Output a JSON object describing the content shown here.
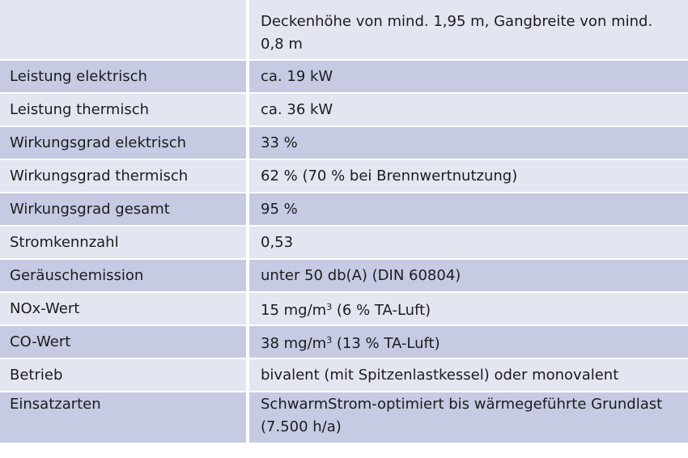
{
  "rows": [
    {
      "label": "",
      "value": "Deckenhöhe von mind. 1,95 m, Gangbreite von mind. 0,8 m"
    },
    {
      "label": "Leistung elektrisch",
      "value": "ca. 19 kW"
    },
    {
      "label": "Leistung thermisch",
      "value": "ca. 36 kW"
    },
    {
      "label": "Wirkungsgrad elektrisch",
      "value": "33 %"
    },
    {
      "label": "Wirkungsgrad thermisch",
      "value": "62 % (70 % bei Brennwertnutzung)"
    },
    {
      "label": "Wirkungsgrad gesamt",
      "value": "95 %"
    },
    {
      "label": "Stromkennzahl",
      "value": "0,53"
    },
    {
      "label": "Geräuschemission",
      "value": "unter 50 db(A) (DIN 60804)"
    },
    {
      "label": "NOx-Wert",
      "value_pre": "15 mg/m",
      "value_sup": "3",
      "value_post": " (6 % TA-Luft)"
    },
    {
      "label": "CO-Wert",
      "value_pre": "38 mg/m",
      "value_sup": "3",
      "value_post": " (13 % TA-Luft)"
    },
    {
      "label": "Betrieb",
      "value": "bivalent (mit Spitzenlastkessel) oder monovalent"
    },
    {
      "label": "Einsatzarten",
      "value": "SchwarmStrom-optimiert bis wärmegeführte Grundlast (7.500 h/a)"
    }
  ],
  "colors": {
    "row_dark": "#c6cbe3",
    "row_light": "#e3e5f1",
    "text": "#1c1c1c"
  }
}
